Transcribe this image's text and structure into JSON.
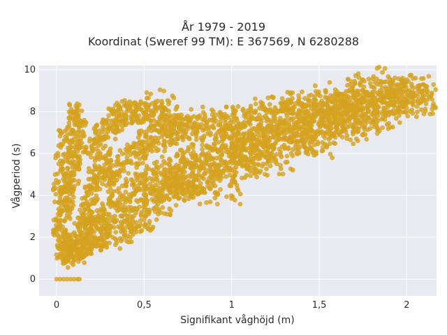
{
  "chart_data": {
    "type": "scatter",
    "title": [
      "År 1979 - 2019",
      "Koordinat (Sweref 99 TM): E 367569, N 6280288"
    ],
    "xlabel": "Signifikant våghöjd (m)",
    "ylabel": "Vågperiod (s)",
    "xlim": [
      -0.1,
      2.17
    ],
    "ylim": [
      -0.8,
      10.2
    ],
    "x_ticks": [
      0,
      0.5,
      1,
      1.5,
      2
    ],
    "x_tick_labels": [
      "0",
      "0,5",
      "1",
      "1,5",
      "2"
    ],
    "y_ticks": [
      0,
      2,
      4,
      6,
      8,
      10
    ],
    "y_tick_labels": [
      "0",
      "2",
      "4",
      "6",
      "8",
      "10"
    ],
    "grid": true,
    "background_color": "#e9e9f0",
    "marker_color": "#d4a21f",
    "series": [
      {
        "points": [
          [
            0.0,
            0
          ],
          [
            0.02,
            0
          ],
          [
            0.04,
            0
          ],
          [
            0.06,
            0
          ],
          [
            0.08,
            0
          ],
          [
            0.1,
            0
          ],
          [
            0.12,
            0
          ],
          [
            0.13,
            0
          ],
          [
            0.03,
            1.2
          ],
          [
            0.05,
            1.4
          ],
          [
            0.08,
            1.1
          ],
          [
            0.1,
            1.6
          ],
          [
            0.12,
            1.3
          ],
          [
            0.15,
            1.5
          ],
          [
            0.18,
            1.7
          ],
          [
            0.02,
            2.6
          ],
          [
            0.04,
            3.3
          ],
          [
            0.06,
            3.9
          ],
          [
            0.07,
            4.6
          ],
          [
            0.09,
            5.1
          ],
          [
            0.1,
            6.0
          ],
          [
            0.12,
            6.6
          ],
          [
            0.11,
            7.9
          ],
          [
            0.13,
            7.6
          ],
          [
            0.05,
            6.8
          ],
          [
            0.03,
            5.5
          ],
          [
            0.02,
            4.2
          ],
          [
            0.04,
            2.0
          ],
          [
            0.14,
            2.2
          ],
          [
            0.16,
            2.9
          ],
          [
            0.18,
            3.4
          ],
          [
            0.2,
            4.1
          ],
          [
            0.22,
            4.8
          ],
          [
            0.25,
            5.3
          ],
          [
            0.28,
            5.8
          ],
          [
            0.2,
            6.3
          ],
          [
            0.24,
            6.9
          ],
          [
            0.3,
            7.2
          ],
          [
            0.33,
            7.6
          ],
          [
            0.36,
            7.8
          ],
          [
            0.4,
            8.0
          ],
          [
            0.45,
            8.0
          ],
          [
            0.5,
            7.9
          ],
          [
            0.55,
            7.8
          ],
          [
            0.6,
            8.5
          ],
          [
            0.62,
            7.6
          ],
          [
            0.7,
            7.7
          ],
          [
            0.2,
            2.4
          ],
          [
            0.25,
            2.8
          ],
          [
            0.3,
            3.1
          ],
          [
            0.35,
            3.5
          ],
          [
            0.4,
            3.8
          ],
          [
            0.45,
            4.2
          ],
          [
            0.5,
            4.5
          ],
          [
            0.55,
            4.7
          ],
          [
            0.6,
            5.0
          ],
          [
            0.65,
            5.2
          ],
          [
            0.7,
            5.4
          ],
          [
            0.75,
            5.5
          ],
          [
            0.8,
            5.7
          ],
          [
            0.85,
            5.9
          ],
          [
            0.3,
            4.6
          ],
          [
            0.35,
            5.0
          ],
          [
            0.4,
            5.6
          ],
          [
            0.45,
            6.0
          ],
          [
            0.5,
            6.3
          ],
          [
            0.55,
            6.6
          ],
          [
            0.6,
            6.8
          ],
          [
            0.65,
            7.0
          ],
          [
            0.7,
            7.2
          ],
          [
            0.75,
            7.3
          ],
          [
            0.8,
            7.2
          ],
          [
            0.9,
            7.5
          ],
          [
            0.95,
            7.7
          ],
          [
            1.0,
            7.6
          ],
          [
            0.9,
            6.2
          ],
          [
            0.95,
            6.4
          ],
          [
            1.0,
            6.5
          ],
          [
            1.05,
            6.7
          ],
          [
            1.1,
            6.8
          ],
          [
            1.15,
            6.9
          ],
          [
            1.2,
            7.0
          ],
          [
            1.1,
            7.5
          ],
          [
            1.2,
            7.7
          ],
          [
            1.25,
            7.9
          ],
          [
            1.3,
            8.1
          ],
          [
            1.35,
            8.2
          ],
          [
            1.4,
            8.4
          ],
          [
            1.45,
            8.5
          ],
          [
            1.25,
            6.5
          ],
          [
            1.3,
            6.9
          ],
          [
            1.35,
            7.1
          ],
          [
            1.4,
            7.2
          ],
          [
            1.45,
            7.4
          ],
          [
            1.5,
            7.5
          ],
          [
            1.55,
            7.7
          ],
          [
            1.5,
            8.3
          ],
          [
            1.55,
            8.5
          ],
          [
            1.6,
            8.0
          ],
          [
            1.65,
            7.8
          ],
          [
            1.7,
            8.1
          ],
          [
            1.72,
            7.6
          ],
          [
            1.75,
            8.2
          ],
          [
            1.6,
            7.2
          ],
          [
            1.62,
            7.5
          ],
          [
            1.68,
            7.7
          ],
          [
            1.78,
            8.0
          ],
          [
            1.8,
            8.5
          ],
          [
            1.82,
            8.3
          ],
          [
            1.85,
            8.6
          ],
          [
            1.88,
            8.8
          ],
          [
            1.9,
            8.4
          ],
          [
            1.93,
            8.7
          ],
          [
            1.95,
            8.9
          ],
          [
            1.97,
            8.5
          ],
          [
            2.0,
            9.0
          ],
          [
            2.03,
            8.7
          ],
          [
            2.05,
            9.6
          ],
          [
            2.07,
            9.1
          ],
          [
            1.86,
            9.4
          ],
          [
            1.75,
            9.0
          ],
          [
            1.72,
            8.8
          ],
          [
            1.98,
            8.3
          ],
          [
            0.22,
            1.9
          ],
          [
            0.26,
            2.1
          ],
          [
            0.32,
            2.0
          ],
          [
            0.38,
            2.3
          ],
          [
            0.42,
            2.5
          ],
          [
            0.48,
            2.8
          ],
          [
            0.52,
            3.3
          ],
          [
            0.58,
            3.6
          ],
          [
            0.63,
            4.0
          ],
          [
            0.68,
            4.2
          ],
          [
            0.72,
            4.4
          ],
          [
            0.78,
            4.6
          ],
          [
            0.84,
            4.8
          ],
          [
            0.9,
            5.0
          ],
          [
            0.96,
            5.3
          ],
          [
            1.02,
            5.6
          ],
          [
            1.08,
            5.8
          ],
          [
            1.14,
            5.9
          ],
          [
            0.7,
            4.8
          ],
          [
            0.8,
            4.4
          ],
          [
            0.92,
            4.1
          ],
          [
            1.0,
            5.2
          ],
          [
            1.2,
            6.1
          ],
          [
            1.12,
            6.3
          ],
          [
            1.18,
            5.5
          ],
          [
            1.3,
            6.4
          ],
          [
            1.4,
            6.6
          ],
          [
            1.45,
            6.3
          ],
          [
            1.5,
            7.0
          ],
          [
            1.55,
            7.2
          ],
          [
            1.58,
            6.9
          ]
        ]
      }
    ]
  }
}
